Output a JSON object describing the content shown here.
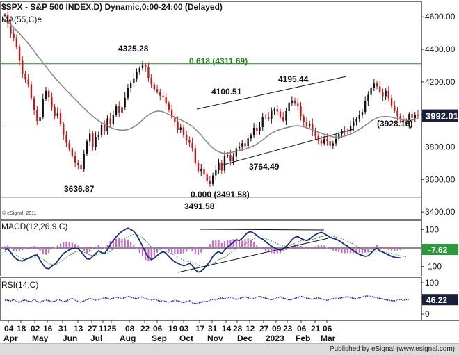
{
  "chart_data": {
    "type": "candlestick",
    "title": "$SPX - S&P 500 INDEX,D) Dynamic,0:00-24:00 (Delayed)",
    "ma_label": "MA(55,C)e",
    "credit": "© eSignal, 2011",
    "price_axis": {
      "ticks": [
        3400,
        3600,
        3800,
        4000,
        4200,
        4400,
        4600
      ],
      "tick_labels": [
        "3400.00",
        "3600.00",
        "3800.00",
        "4000.00",
        "4200.00",
        "4400.00",
        "4600.00"
      ],
      "range": [
        3358,
        4695
      ]
    },
    "last_price": {
      "label": "3992.01",
      "value": 3992.01
    },
    "price_series": [
      4610,
      4560,
      4495,
      4470,
      4415,
      4330,
      4250,
      4215,
      4185,
      4100,
      4025,
      3960,
      3985,
      4095,
      4145,
      4105,
      4045,
      3990,
      4010,
      3940,
      3870,
      3825,
      3790,
      3745,
      3705,
      3690,
      3665,
      3760,
      3835,
      3882,
      3800,
      3862,
      3872,
      3935,
      3900,
      3975,
      3940,
      3998,
      4050,
      4012,
      4045,
      4102,
      4162,
      4195,
      4222,
      4262,
      4285,
      4302,
      4290,
      4225,
      4185,
      4155,
      4140,
      4115,
      4110,
      4070,
      4030,
      3980,
      3955,
      3905,
      3920,
      3872,
      3845,
      3825,
      3792,
      3702,
      3652,
      3665,
      3630,
      3592,
      3572,
      3625,
      3660,
      3705,
      3655,
      3745,
      3750,
      3712,
      3740,
      3791,
      3804,
      3822,
      3805,
      3852,
      3870,
      3918,
      3901,
      3922,
      3986,
      3985,
      3972,
      4022,
      4032,
      4018,
      3986,
      3962,
      4020,
      4072,
      4085,
      4070,
      4052,
      3988,
      3952,
      3930,
      3942,
      3895,
      3867,
      3838,
      3822,
      3848,
      3836,
      3808,
      3822,
      3850,
      3880,
      3900,
      3898,
      3895,
      3928,
      3958,
      3973,
      3995,
      4015,
      4080,
      4120,
      4165,
      4190,
      4172,
      4135,
      4112,
      4145,
      4100,
      4050,
      4020,
      3990,
      3970,
      3955,
      3945,
      4003,
      3978,
      3998,
      3992
    ],
    "ma_series": [
      4585,
      4568,
      4551,
      4534,
      4516,
      4497,
      4477,
      4457,
      4436,
      4413,
      4389,
      4363,
      4341,
      4318,
      4295,
      4271,
      4248,
      4226,
      4207,
      4187,
      4168,
      4149,
      4130,
      4111,
      4093,
      4075,
      4056,
      4038,
      4021,
      4005,
      3988,
      3974,
      3961,
      3949,
      3939,
      3929,
      3920,
      3913,
      3908,
      3905,
      3903,
      3904,
      3907,
      3914,
      3923,
      3935,
      3950,
      3966,
      3982,
      3996,
      4008,
      4016,
      4020,
      4020,
      4016,
      4008,
      3999,
      3991,
      3982,
      3974,
      3967,
      3958,
      3949,
      3938,
      3926,
      3910,
      3892,
      3872,
      3850,
      3829,
      3811,
      3794,
      3780,
      3770,
      3764,
      3760,
      3762,
      3765,
      3769,
      3773,
      3778,
      3783,
      3788,
      3793,
      3800,
      3808,
      3818,
      3830,
      3843,
      3858,
      3872,
      3884,
      3894,
      3902,
      3908,
      3913,
      3918,
      3922,
      3926,
      3929,
      3930,
      3928,
      3924,
      3918,
      3912,
      3905,
      3898,
      3891,
      3884,
      3879,
      3873,
      3867,
      3862,
      3859,
      3860,
      3863,
      3867,
      3872,
      3879,
      3888,
      3897,
      3908,
      3920,
      3933,
      3946,
      3959,
      3970,
      3978,
      3984,
      3986,
      3987,
      3986,
      3983,
      3978,
      3974,
      3970,
      3966,
      3962,
      3962,
      3966,
      3970,
      3975
    ],
    "annotations": [
      {
        "text": "4325.28",
        "value": 4325.28
      },
      {
        "text": "4100.51",
        "value": 4100.51
      },
      {
        "text": "4195.44",
        "value": 4195.44
      },
      {
        "text": "0.618 (4311.69)",
        "value": 4311.69,
        "color": "#1f8a1f"
      },
      {
        "text": "(3928.16)",
        "value": 3928.16
      },
      {
        "text": "3764.49",
        "value": 3764.49
      },
      {
        "text": "0.000 (3491.58)",
        "value": 3491.58
      },
      {
        "text": "3491.58",
        "value": 3491.58
      },
      {
        "text": "3636.87",
        "value": 3636.87
      }
    ],
    "macd": {
      "label": "MACD(12,26,9,C)",
      "ticks": [
        100,
        -100
      ],
      "tick_labels": [
        "100",
        "-100"
      ],
      "range": [
        -150,
        150
      ],
      "last_label": "-7.62",
      "last_value": -7.62,
      "macd_series": [
        -10,
        -5,
        -25,
        -45,
        -60,
        -68,
        -70,
        -62,
        -55,
        -48,
        -40,
        -38,
        -65,
        -90,
        -108,
        -112,
        -98,
        -88,
        -70,
        -50,
        -30,
        -20,
        -10,
        -3,
        0,
        -4,
        -20,
        -40,
        -58,
        -60,
        -45,
        -30,
        -15,
        -25,
        -30,
        -10,
        20,
        40,
        60,
        78,
        90,
        100,
        108,
        100,
        90,
        70,
        40,
        10,
        -25,
        -50,
        -62,
        -55,
        -40,
        -28,
        -20,
        -28,
        -45,
        -62,
        -75,
        -82,
        -90,
        -95,
        -92,
        -82,
        -95,
        -118,
        -130,
        -125,
        -110,
        -92,
        -72,
        -45,
        -28,
        -20,
        -30,
        -12,
        5,
        18,
        32,
        45,
        40,
        52,
        70,
        85,
        88,
        80,
        68,
        55,
        48,
        35,
        22,
        10,
        2,
        -6,
        -12,
        -4,
        8,
        26,
        44,
        58,
        62,
        52,
        45,
        40,
        48,
        62,
        72,
        80,
        85,
        78,
        68,
        58,
        52,
        48,
        40,
        30,
        18,
        10,
        -4,
        -15,
        -25,
        -35,
        -40,
        -45,
        -42,
        -28,
        -10,
        -2,
        -15,
        -22,
        -30,
        -38,
        -45,
        -50,
        -52,
        -53
      ],
      "signal_series": [
        -20,
        -18,
        -22,
        -30,
        -40,
        -50,
        -58,
        -60,
        -58,
        -55,
        -50,
        -46,
        -50,
        -60,
        -72,
        -84,
        -90,
        -90,
        -84,
        -74,
        -62,
        -50,
        -40,
        -31,
        -22,
        -17,
        -18,
        -22,
        -30,
        -38,
        -40,
        -38,
        -33,
        -31,
        -31,
        -27,
        -18,
        -5,
        10,
        25,
        40,
        52,
        62,
        70,
        74,
        73,
        67,
        56,
        40,
        22,
        5,
        -8,
        -15,
        -18,
        -18,
        -20,
        -25,
        -32,
        -41,
        -50,
        -58,
        -66,
        -71,
        -74,
        -78,
        -85,
        -94,
        -100,
        -102,
        -100,
        -94,
        -85,
        -74,
        -63,
        -57,
        -49,
        -39,
        -27,
        -16,
        -5,
        4,
        12,
        22,
        32,
        42,
        50,
        54,
        55,
        54,
        51,
        45,
        38,
        31,
        23,
        15,
        11,
        10,
        13,
        19,
        27,
        34,
        38,
        40,
        40,
        42,
        46,
        51,
        57,
        62,
        65,
        66,
        65,
        62,
        59,
        55,
        50,
        44,
        37,
        29,
        20,
        11,
        2,
        -6,
        -13,
        -18,
        -20,
        -18,
        -17,
        -19,
        -21,
        -24,
        -27,
        -31,
        -35,
        -38,
        -42,
        -45,
        -48
      ],
      "histogram": [
        10,
        13,
        -3,
        -15,
        -20,
        -18,
        -12,
        -2,
        3,
        7,
        10,
        8,
        -15,
        -30,
        -36,
        -28,
        -8,
        2,
        14,
        24,
        32,
        30,
        30,
        28,
        22,
        13,
        -2,
        -18,
        -28,
        -22,
        -5,
        8,
        18,
        6,
        1,
        17,
        38,
        45,
        50,
        53,
        50,
        48,
        46,
        30,
        16,
        -3,
        -27,
        -46,
        -65,
        -72,
        -67,
        -47,
        -25,
        -10,
        -2,
        -8,
        -20,
        -30,
        -34,
        -32,
        -32,
        -29,
        -21,
        -8,
        -17,
        -33,
        -36,
        -25,
        -8,
        8,
        22,
        40,
        46,
        43,
        27,
        37,
        44,
        45,
        48,
        50,
        36,
        40,
        48,
        53,
        46,
        30,
        14,
        0,
        -6,
        -16,
        -23,
        -28,
        -29,
        -29,
        -27,
        -17,
        -11,
        -1,
        10,
        20,
        22,
        12,
        3,
        -6,
        -3,
        5,
        10,
        15,
        19,
        13,
        2,
        -7,
        -14,
        -19,
        -22,
        -27,
        -28,
        -27,
        -28,
        -27,
        -26,
        -27,
        -29,
        -25,
        -24,
        -10,
        8,
        19,
        4,
        -1,
        -6,
        -11,
        -14,
        -15,
        -14,
        -11,
        -8
      ]
    },
    "rsi": {
      "label": "RSI(14,C)",
      "ticks": [
        100,
        50,
        0
      ],
      "tick_labels": [
        "100",
        "50",
        "0"
      ],
      "range": [
        0,
        100
      ],
      "last_label": "46.22",
      "last_value": 46.22,
      "series": [
        45,
        44,
        42,
        46,
        40,
        38,
        43,
        45,
        41,
        39,
        47,
        40,
        37,
        42,
        45,
        43,
        39,
        41,
        46,
        44,
        40,
        42,
        47,
        49,
        45,
        40,
        38,
        42,
        46,
        50,
        48,
        44,
        46,
        49,
        52,
        50,
        47,
        51,
        54,
        52,
        49,
        53,
        56,
        54,
        51,
        49,
        53,
        55,
        50,
        47,
        45,
        48,
        44,
        41,
        43,
        40,
        38,
        41,
        44,
        42,
        39,
        37,
        40,
        43,
        36,
        33,
        35,
        38,
        41,
        39,
        44,
        47,
        45,
        49,
        52,
        48,
        51,
        54,
        50,
        47,
        49,
        53,
        55,
        52,
        48,
        50,
        54,
        56,
        53,
        51,
        48,
        46,
        49,
        52,
        55,
        51,
        48,
        45,
        47,
        50,
        53,
        57,
        54,
        51,
        49,
        47,
        50,
        52,
        48,
        46,
        44,
        47,
        49,
        51,
        50,
        52,
        54,
        55,
        53,
        50,
        49,
        52,
        55,
        57,
        58,
        56,
        54,
        52,
        50,
        48,
        46,
        44,
        43,
        42,
        45,
        47,
        44,
        46,
        46
      ],
      "dotted": true
    },
    "x_axis": {
      "day_labels": [
        "04",
        "18",
        "02",
        "16",
        "31",
        "13",
        "27",
        "11",
        "25",
        "08",
        "22",
        "06",
        "19",
        "03",
        "17",
        "31",
        "14",
        "28",
        "12",
        "27",
        "09",
        "23",
        "06",
        "21",
        "06"
      ],
      "month_labels": [
        "Apr",
        "May",
        "Jun",
        "Jul",
        "Aug",
        "Sep",
        "Oct",
        "Nov",
        "Dec",
        "2023",
        "Feb",
        "Mar"
      ]
    },
    "colors": {
      "up": "#111111",
      "down": "#cc1111",
      "ma": "#888888",
      "fib_line": "#1f8a1f",
      "macd_line": "#1a2a8a",
      "signal_line": "#2a9a3a",
      "histogram": "#cc66cc",
      "rsi_line": "#1a2aaa"
    },
    "grid": false
  },
  "footer": {
    "text": "Published by eSignal (www.esignal.com)"
  }
}
